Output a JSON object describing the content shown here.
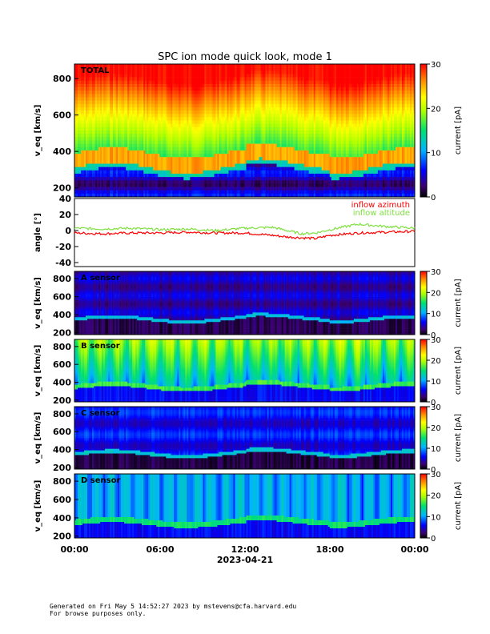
{
  "title": "SPC ion mode quick look, mode 1",
  "footer": {
    "line1": "Generated on Fri May  5 14:52:27 2023 by mstevens@cfa.harvard.edu",
    "line2": "For browse purposes only."
  },
  "colors": {
    "inflow_azimuth": "#ff0000",
    "inflow_altitude": "#7fe040"
  },
  "chart_data": [
    {
      "type": "heatmap",
      "name": "TOTAL",
      "ylabel": "v_eq [km/s]",
      "yticks": [
        200,
        400,
        600,
        800
      ],
      "ylim": [
        150,
        880
      ],
      "colorbar": {
        "label": "current [pA]",
        "ticks": [
          0,
          10,
          20,
          30
        ],
        "range": [
          0,
          30
        ]
      },
      "description_profile": {
        "low_speed_current": 2,
        "core_speed": 360,
        "core_current": 26,
        "high_speed_current": 27
      }
    },
    {
      "type": "line",
      "ylabel": "angle [°]",
      "ylim": [
        -45,
        40
      ],
      "yticks": [
        -40,
        -20,
        0,
        20,
        40
      ],
      "legend": [
        "inflow azimuth",
        "inflow altitude"
      ],
      "legend_position": "top-right",
      "x_hours": [
        0,
        2,
        4,
        6,
        8,
        10,
        12,
        14,
        15,
        16,
        17,
        18,
        20,
        22,
        24
      ],
      "series": [
        {
          "name": "inflow azimuth",
          "color": "#ff0000",
          "values": [
            -3,
            -4,
            -3,
            -3,
            -2,
            -3,
            -3,
            -6,
            -8,
            -9,
            -10,
            -6,
            -3,
            -2,
            -1
          ]
        },
        {
          "name": "inflow altitude",
          "color": "#7fe040",
          "values": [
            3,
            2,
            3,
            1,
            2,
            0,
            3,
            4,
            0,
            -4,
            -3,
            1,
            8,
            5,
            3
          ]
        }
      ]
    },
    {
      "type": "heatmap",
      "name": "A sensor",
      "ylabel": "v_eq [km/s]",
      "yticks": [
        200,
        400,
        600,
        800
      ],
      "ylim": [
        180,
        880
      ],
      "colorbar": {
        "label": "current [pA]",
        "ticks": [
          0,
          10,
          20,
          30
        ],
        "range": [
          0,
          30
        ]
      }
    },
    {
      "type": "heatmap",
      "name": "B sensor",
      "ylabel": "v_eq [km/s]",
      "yticks": [
        200,
        400,
        600,
        800
      ],
      "ylim": [
        180,
        880
      ],
      "colorbar": {
        "label": "current [pA]",
        "ticks": [
          0,
          10,
          20,
          30
        ],
        "range": [
          0,
          30
        ]
      }
    },
    {
      "type": "heatmap",
      "name": "C sensor",
      "ylabel": "v_eq [km/s]",
      "yticks": [
        200,
        400,
        600,
        800
      ],
      "ylim": [
        180,
        880
      ],
      "colorbar": {
        "label": "current [pA]",
        "ticks": [
          0,
          10,
          20,
          30
        ],
        "range": [
          0,
          30
        ]
      }
    },
    {
      "type": "heatmap",
      "name": "D sensor",
      "ylabel": "v_eq [km/s]",
      "yticks": [
        200,
        400,
        600,
        800
      ],
      "ylim": [
        180,
        880
      ],
      "colorbar": {
        "label": "current [pA]",
        "ticks": [
          0,
          10,
          20,
          30
        ],
        "range": [
          0,
          30
        ]
      }
    }
  ],
  "xaxis": {
    "ticks": [
      "00:00",
      "06:00",
      "12:00",
      "18:00",
      "00:00"
    ],
    "date": "2023-04-21"
  }
}
